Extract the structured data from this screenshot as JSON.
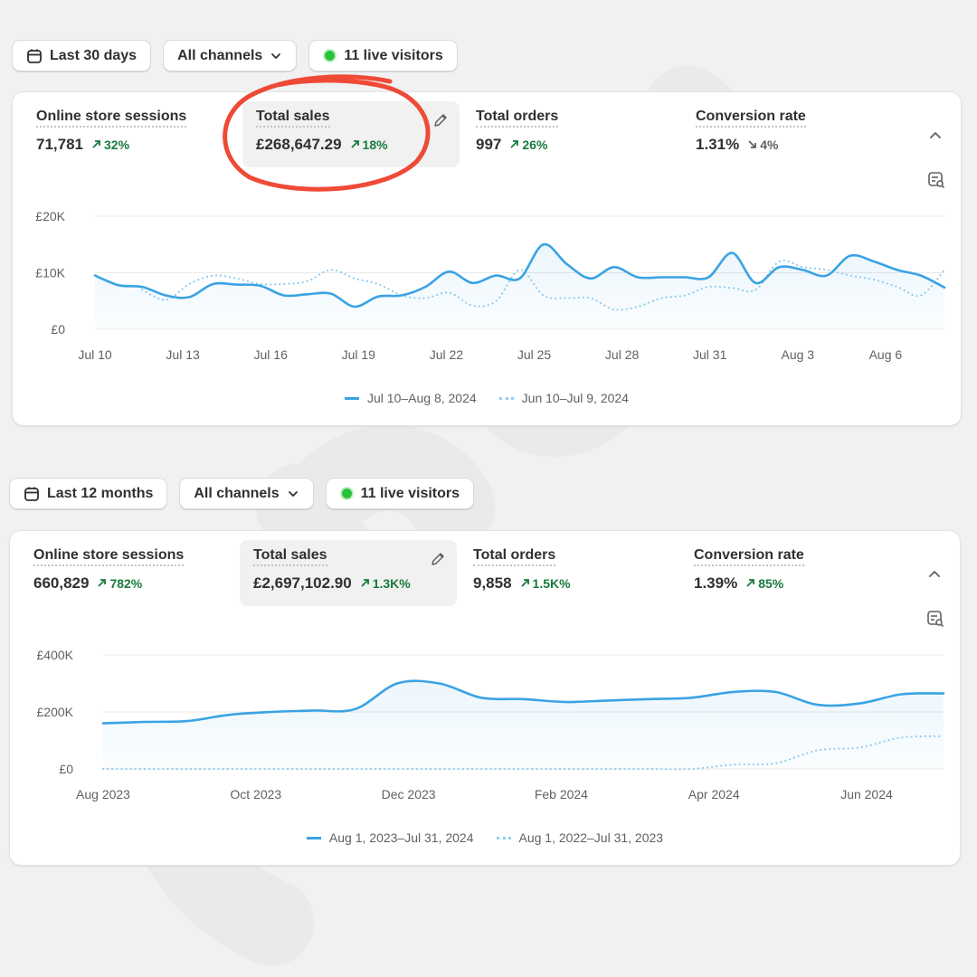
{
  "panels": [
    {
      "date_range": "Last 30 days",
      "channels": "All channels",
      "live_visitors": "11 live visitors",
      "metrics": [
        {
          "label": "Online store sessions",
          "value": "71,781",
          "change": "32%",
          "direction": "up"
        },
        {
          "label": "Total sales",
          "value": "£268,647.29",
          "change": "18%",
          "direction": "up"
        },
        {
          "label": "Total orders",
          "value": "997",
          "change": "26%",
          "direction": "up"
        },
        {
          "label": "Conversion rate",
          "value": "1.31%",
          "change": "4%",
          "direction": "down"
        }
      ],
      "chart_data": {
        "type": "line",
        "y_ticks": [
          "£20K",
          "£10K",
          "£0"
        ],
        "ylim": [
          0,
          20000
        ],
        "x_ticks": [
          "Jul 10",
          "Jul 13",
          "Jul 16",
          "Jul 19",
          "Jul 22",
          "Jul 25",
          "Jul 28",
          "Jul 31",
          "Aug 3",
          "Aug 6"
        ],
        "series": [
          {
            "name": "Jul 10–Aug 8, 2024",
            "style": "solid",
            "color": "#3aa3e3",
            "values": [
              9500,
              7800,
              7500,
              6000,
              5700,
              8000,
              7900,
              7700,
              6000,
              6200,
              6300,
              4000,
              5800,
              6000,
              7500,
              10200,
              8200,
              9500,
              9000,
              15000,
              11500,
              9000,
              11000,
              9200,
              9200,
              9200,
              9200,
              13500,
              8200,
              11000,
              10500,
              9500,
              13000,
              12000,
              10500,
              9500,
              7400
            ]
          },
          {
            "name": "Jun 10–Jul 9, 2024",
            "style": "dotted",
            "color": "#92cdf0",
            "values": [
              null,
              null,
              7000,
              5200,
              8000,
              9500,
              9000,
              8000,
              8000,
              8500,
              10500,
              9000,
              8000,
              6000,
              5500,
              6500,
              4200,
              5000,
              10500,
              6000,
              5500,
              5500,
              3500,
              4000,
              5500,
              6000,
              7500,
              7300,
              7000,
              12000,
              11000,
              10500,
              9500,
              8800,
              7500,
              6000,
              10500
            ]
          }
        ]
      }
    },
    {
      "date_range": "Last 12 months",
      "channels": "All channels",
      "live_visitors": "11 live visitors",
      "metrics": [
        {
          "label": "Online store sessions",
          "value": "660,829",
          "change": "782%",
          "direction": "up"
        },
        {
          "label": "Total sales",
          "value": "£2,697,102.90",
          "change": "1.3K%",
          "direction": "up"
        },
        {
          "label": "Total orders",
          "value": "9,858",
          "change": "1.5K%",
          "direction": "up"
        },
        {
          "label": "Conversion rate",
          "value": "1.39%",
          "change": "85%",
          "direction": "up"
        }
      ],
      "chart_data": {
        "type": "line",
        "y_ticks": [
          "£400K",
          "£200K",
          "£0"
        ],
        "ylim": [
          0,
          400000
        ],
        "x_ticks": [
          "Aug 2023",
          "Oct 2023",
          "Dec 2023",
          "Feb 2024",
          "Apr 2024",
          "Jun 2024"
        ],
        "series": [
          {
            "name": "Aug 1, 2023–Jul 31, 2024",
            "style": "solid",
            "color": "#3aa3e3",
            "values": [
              160000,
              165000,
              168000,
              190000,
              200000,
              205000,
              210000,
              300000,
              300000,
              250000,
              245000,
              235000,
              240000,
              245000,
              250000,
              270000,
              270000,
              225000,
              230000,
              262000,
              265000
            ]
          },
          {
            "name": "Aug 1, 2022–Jul 31, 2023",
            "style": "dotted",
            "color": "#92cdf0",
            "values": [
              0,
              0,
              0,
              0,
              0,
              0,
              0,
              0,
              0,
              0,
              0,
              0,
              0,
              0,
              0,
              15000,
              20000,
              65000,
              75000,
              110000,
              115000
            ]
          }
        ]
      }
    }
  ]
}
